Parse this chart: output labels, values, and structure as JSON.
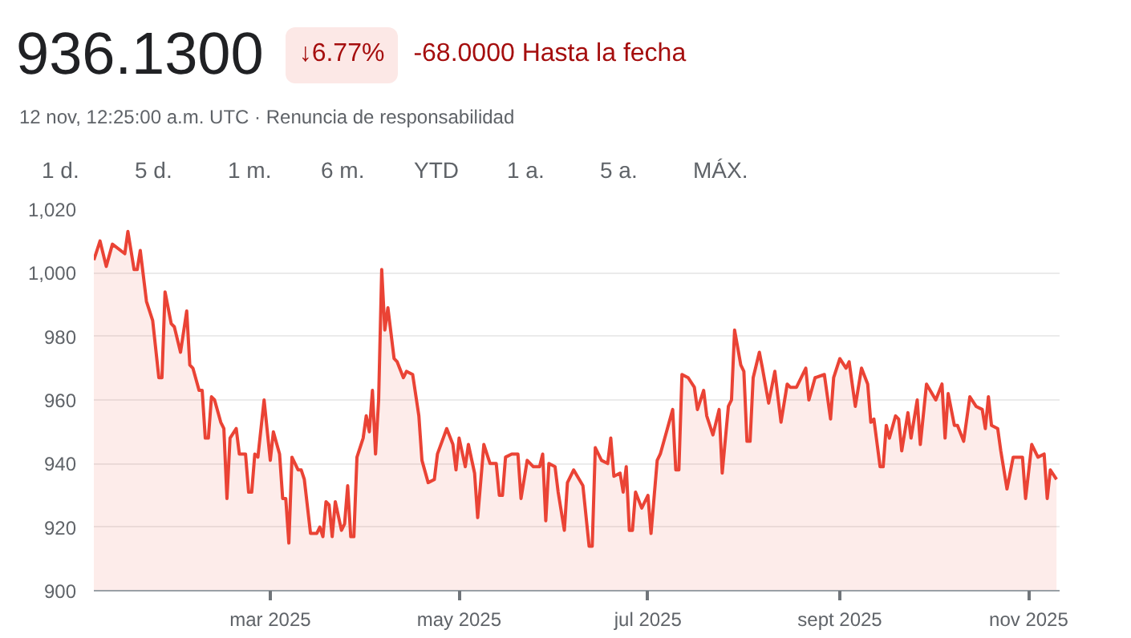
{
  "chart_data": {
    "type": "area",
    "title": "936.1300",
    "subtitle": "12 nov, 12:25:00 a.m. UTC · Renuncia de responsabilidad",
    "annotations": [
      "↓6.77%",
      "-68.0000 Hasta la fecha",
      "1 d.",
      "5 d.",
      "1 m.",
      "6 m.",
      "YTD",
      "1 a.",
      "5 a.",
      "MÁX."
    ],
    "x": [
      "2025-01-03",
      "2025-01-05",
      "2025-01-07",
      "2025-01-09",
      "2025-01-13",
      "2025-01-14",
      "2025-01-16",
      "2025-01-17",
      "2025-01-18",
      "2025-01-20",
      "2025-01-22",
      "2025-01-24",
      "2025-01-25",
      "2025-01-26",
      "2025-01-28",
      "2025-01-29",
      "2025-01-31",
      "2025-02-02",
      "2025-02-03",
      "2025-02-04",
      "2025-02-06",
      "2025-02-07",
      "2025-02-08",
      "2025-02-09",
      "2025-02-10",
      "2025-02-11",
      "2025-02-13",
      "2025-02-14",
      "2025-02-15",
      "2025-02-16",
      "2025-02-18",
      "2025-02-19",
      "2025-02-21",
      "2025-02-22",
      "2025-02-23",
      "2025-02-24",
      "2025-02-25",
      "2025-02-27",
      "2025-03-01",
      "2025-03-02",
      "2025-03-04",
      "2025-03-05",
      "2025-03-06",
      "2025-03-07",
      "2025-03-08",
      "2025-03-10",
      "2025-03-11",
      "2025-03-12",
      "2025-03-14",
      "2025-03-16",
      "2025-03-17",
      "2025-03-18",
      "2025-03-19",
      "2025-03-20",
      "2025-03-21",
      "2025-03-22",
      "2025-03-24",
      "2025-03-25",
      "2025-03-26",
      "2025-03-27",
      "2025-03-28",
      "2025-03-29",
      "2025-03-31",
      "2025-04-01",
      "2025-04-02",
      "2025-04-03",
      "2025-04-04",
      "2025-04-05",
      "2025-04-06",
      "2025-04-07",
      "2025-04-08",
      "2025-04-10",
      "2025-04-11",
      "2025-04-13",
      "2025-04-14",
      "2025-04-16",
      "2025-04-18",
      "2025-04-19",
      "2025-04-21",
      "2025-04-23",
      "2025-04-24",
      "2025-04-27",
      "2025-04-29",
      "2025-04-30",
      "2025-05-01",
      "2025-05-03",
      "2025-05-04",
      "2025-05-06",
      "2025-05-07",
      "2025-05-09",
      "2025-05-11",
      "2025-05-13",
      "2025-05-14",
      "2025-05-15",
      "2025-05-16",
      "2025-05-18",
      "2025-05-20",
      "2025-05-21",
      "2025-05-23",
      "2025-05-25",
      "2025-05-27",
      "2025-05-28",
      "2025-05-29",
      "2025-05-30",
      "2025-06-01",
      "2025-06-02",
      "2025-06-04",
      "2025-06-05",
      "2025-06-07",
      "2025-06-10",
      "2025-06-12",
      "2025-06-13",
      "2025-06-14",
      "2025-06-16",
      "2025-06-18",
      "2025-06-19",
      "2025-06-20",
      "2025-06-22",
      "2025-06-23",
      "2025-06-24",
      "2025-06-25",
      "2025-06-26",
      "2025-06-27",
      "2025-06-29",
      "2025-07-01",
      "2025-07-02",
      "2025-07-04",
      "2025-07-05",
      "2025-07-07",
      "2025-07-09",
      "2025-07-10",
      "2025-07-11",
      "2025-07-12",
      "2025-07-14",
      "2025-07-16",
      "2025-07-17",
      "2025-07-19",
      "2025-07-20",
      "2025-07-22",
      "2025-07-24",
      "2025-07-25",
      "2025-07-27",
      "2025-07-28",
      "2025-07-29",
      "2025-07-31",
      "2025-08-01",
      "2025-08-02",
      "2025-08-03",
      "2025-08-04",
      "2025-08-06",
      "2025-08-07",
      "2025-08-09",
      "2025-08-11",
      "2025-08-13",
      "2025-08-15",
      "2025-08-16",
      "2025-08-18",
      "2025-08-21",
      "2025-08-22",
      "2025-08-24",
      "2025-08-27",
      "2025-08-29",
      "2025-08-30",
      "2025-09-01",
      "2025-09-03",
      "2025-09-04",
      "2025-09-06",
      "2025-09-08",
      "2025-09-10",
      "2025-09-11",
      "2025-09-12",
      "2025-09-14",
      "2025-09-15",
      "2025-09-16",
      "2025-09-17",
      "2025-09-19",
      "2025-09-20",
      "2025-09-21",
      "2025-09-23",
      "2025-09-24",
      "2025-09-26",
      "2025-09-27",
      "2025-09-29",
      "2025-10-02",
      "2025-10-04",
      "2025-10-05",
      "2025-10-06",
      "2025-10-08",
      "2025-10-09",
      "2025-10-11",
      "2025-10-13",
      "2025-10-15",
      "2025-10-17",
      "2025-10-18",
      "2025-10-19",
      "2025-10-20",
      "2025-10-22",
      "2025-10-23",
      "2025-10-25",
      "2025-10-27",
      "2025-10-30",
      "2025-10-31",
      "2025-11-02",
      "2025-11-04",
      "2025-11-06",
      "2025-11-07",
      "2025-11-08",
      "2025-11-10"
    ],
    "series": [
      {
        "color": "#ea4335",
        "values": [
          1004,
          1010,
          1002,
          1009,
          1006,
          1013,
          1001,
          1001,
          1007,
          991,
          985,
          967,
          967,
          994,
          984,
          983,
          975,
          988,
          971,
          970,
          963,
          963,
          948,
          948,
          961,
          960,
          953,
          951,
          929,
          948,
          951,
          943,
          943,
          931,
          931,
          943,
          942,
          960,
          941,
          950,
          943,
          929,
          929,
          915,
          942,
          938,
          938,
          935,
          918,
          918,
          920,
          917,
          928,
          927,
          917,
          928,
          919,
          921,
          933,
          917,
          917,
          942,
          948,
          955,
          950,
          963,
          943,
          960,
          1001,
          982,
          989,
          973,
          972,
          967,
          969,
          968,
          955,
          941,
          934,
          935,
          943,
          951,
          946,
          938,
          948,
          939,
          946,
          937,
          923,
          946,
          940,
          940,
          930,
          930,
          942,
          943,
          943,
          929,
          941,
          939,
          939,
          943,
          922,
          940,
          939,
          931,
          919,
          934,
          938,
          933,
          914,
          914,
          945,
          941,
          940,
          948,
          936,
          937,
          931,
          939,
          919,
          919,
          931,
          926,
          930,
          918,
          941,
          943,
          950,
          957,
          938,
          938,
          968,
          967,
          964,
          957,
          963,
          955,
          949,
          957,
          937,
          958,
          960,
          982,
          971,
          969,
          947,
          947,
          967,
          975,
          970,
          959,
          969,
          953,
          965,
          964,
          964,
          970,
          960,
          967,
          968,
          954,
          967,
          973,
          970,
          972,
          958,
          970,
          965,
          953,
          954,
          939,
          939,
          952,
          948,
          955,
          954,
          944,
          956,
          948,
          960,
          946,
          965,
          960,
          965,
          948,
          962,
          952,
          952,
          947,
          961,
          958,
          957,
          951,
          961,
          952,
          951,
          944,
          932,
          942,
          942,
          929,
          946,
          942,
          943,
          929,
          938,
          935
        ]
      }
    ],
    "xlim": [
      "2025-01-03",
      "2025-11-11"
    ],
    "xticks": [
      {
        "value": "2025-03-01",
        "label": "mar 2025"
      },
      {
        "value": "2025-05-01",
        "label": "may 2025"
      },
      {
        "value": "2025-07-01",
        "label": "jul 2025"
      },
      {
        "value": "2025-09-01",
        "label": "sept 2025"
      },
      {
        "value": "2025-11-01",
        "label": "nov 2025"
      }
    ],
    "ylim": [
      900,
      1020
    ],
    "yticks": [
      900,
      920,
      940,
      960,
      980,
      {
        "value": 1000,
        "label": "1,000"
      },
      {
        "value": 1020,
        "label": "1,020"
      }
    ],
    "grid": "y"
  }
}
